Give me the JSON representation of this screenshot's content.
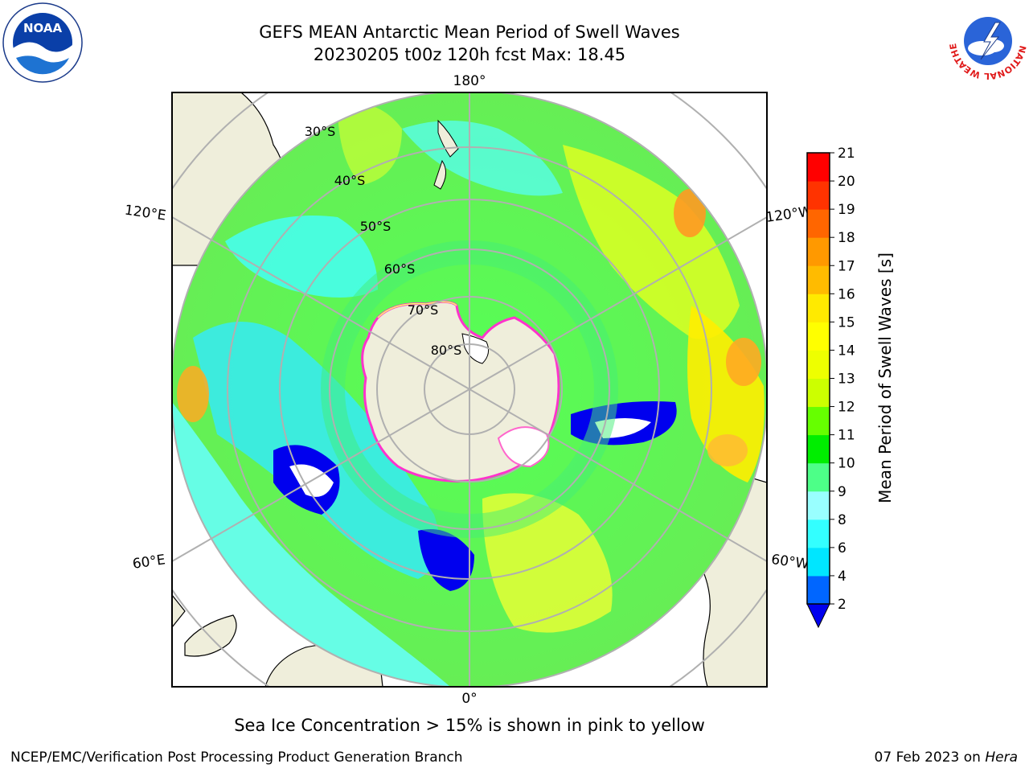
{
  "title": {
    "line1": "GEFS MEAN Antarctic Mean Period of Swell Waves",
    "line2": "20230205 t00z 120h fcst   Max: 18.45"
  },
  "map": {
    "projection": "south-polar-stereographic",
    "longitude_labels": {
      "top": "180°",
      "bottom": "0°",
      "upper_left": "120°E",
      "upper_right": "120°W",
      "lower_left": "60°E",
      "lower_right": "60°W"
    },
    "latitude_labels": [
      "30°S",
      "40°S",
      "50°S",
      "60°S",
      "70°S",
      "80°S"
    ],
    "land_color": "#efeedb",
    "sea_ice_color_range": [
      "#ff33cc",
      "#ffff66"
    ]
  },
  "colorbar": {
    "label": "Mean Period of Swell Waves [s]",
    "ticks": [
      "2",
      "4",
      "6",
      "8",
      "9",
      "10",
      "11",
      "12",
      "13",
      "14",
      "15",
      "16",
      "17",
      "18",
      "19",
      "20",
      "21"
    ],
    "colors": [
      "#0066ff",
      "#00e6ff",
      "#33ffff",
      "#99ffff",
      "#4dff88",
      "#00ee00",
      "#66ff00",
      "#ccff00",
      "#eeff00",
      "#ffff00",
      "#ffea00",
      "#ffbb00",
      "#ff9900",
      "#ff6600",
      "#ff3300",
      "#ff0000"
    ],
    "under_color": "#0000ee"
  },
  "caption": "Sea Ice Concentration > 15% is shown in pink to yellow",
  "footer": {
    "left": "NCEP/EMC/Verification Post Processing Product Generation Branch",
    "right_date": "07 Feb 2023 on",
    "right_machine": "Hera"
  },
  "logos": {
    "left": "NOAA",
    "right": "NATIONAL WEATHER SERVICE"
  }
}
